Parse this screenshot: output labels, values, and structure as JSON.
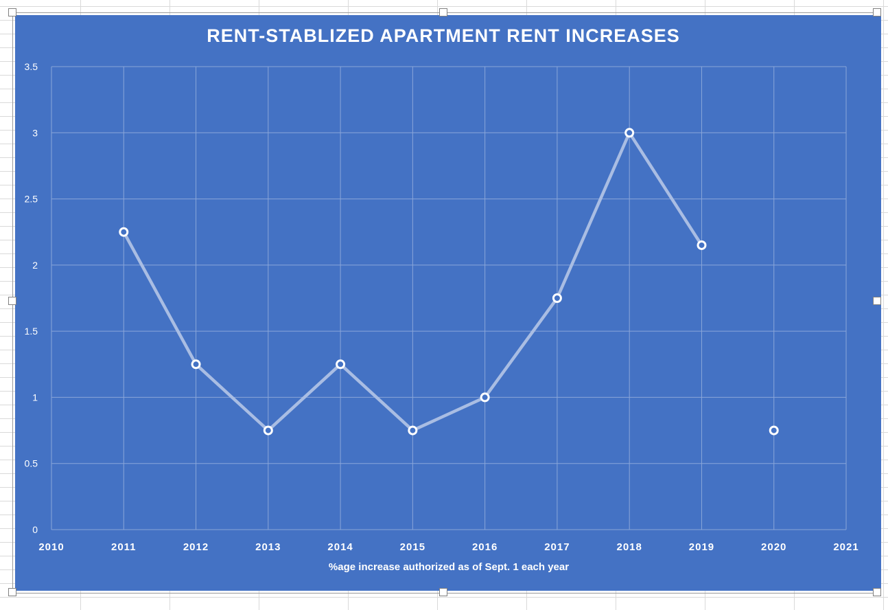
{
  "chart_data": {
    "type": "scatter",
    "title": "RENT-STABLIZED APARTMENT RENT INCREASES",
    "xlabel": "%age increase authorized as of Sept. 1 each year",
    "ylabel": "",
    "xlim": [
      2010,
      2021
    ],
    "ylim": [
      0,
      3.5
    ],
    "x_ticks": [
      "2010",
      "2011",
      "2012",
      "2013",
      "2014",
      "2015",
      "2016",
      "2017",
      "2018",
      "2019",
      "2020",
      "2021"
    ],
    "y_ticks": [
      "0",
      "0.5",
      "1",
      "1.5",
      "2",
      "2.5",
      "3",
      "3.5"
    ],
    "grid": true,
    "series": [
      {
        "x": [
          2011,
          2012,
          2013,
          2014,
          2015,
          2016,
          2017,
          2018,
          2019,
          2020
        ],
        "y": [
          2.25,
          1.25,
          0.75,
          1.25,
          0.75,
          1.0,
          1.75,
          3.0,
          2.15,
          0.75
        ],
        "line_segments": [
          [
            0,
            8
          ]
        ],
        "color": "#a9bde3"
      }
    ],
    "colors": {
      "background": "#4472c4",
      "gridline": "#8aa6d9",
      "text": "#ffffff",
      "marker_fill": "#4472c4",
      "marker_stroke": "#ffffff"
    }
  }
}
